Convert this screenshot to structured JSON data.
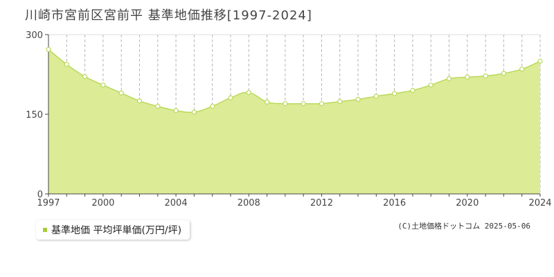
{
  "title": "川崎市宮前区宮前平 基準地価推移[1997-2024]",
  "legend_label": "基準地価 平均坪単価(万円/坪)",
  "credit": "(C)土地価格ドットコム 2025-05-06",
  "colors": {
    "area_fill": "#dceb95",
    "line": "#b9d95a",
    "marker_fill": "#ffffff",
    "marker_stroke": "#b9d95a",
    "legend_swatch": "#a8cc3a",
    "grid_vertical": "#b5b5b5",
    "grid_horizontal": "#999999",
    "axis": "#444444"
  },
  "chart_data": {
    "type": "area",
    "title": "川崎市宮前区宮前平 基準地価推移[1997-2024]",
    "xlabel": "",
    "ylabel": "",
    "x": [
      1997,
      1998,
      1999,
      2000,
      2001,
      2002,
      2003,
      2004,
      2005,
      2006,
      2007,
      2008,
      2009,
      2010,
      2011,
      2012,
      2013,
      2014,
      2015,
      2016,
      2017,
      2018,
      2019,
      2020,
      2021,
      2022,
      2023,
      2024
    ],
    "series": [
      {
        "name": "基準地価 平均坪単価(万円/坪)",
        "values": [
          272,
          244,
          221,
          205,
          190,
          175,
          165,
          157,
          154,
          165,
          181,
          191,
          173,
          170,
          170,
          170,
          174,
          178,
          184,
          189,
          195,
          205,
          217,
          220,
          222,
          227,
          235,
          250
        ]
      }
    ],
    "xlim": [
      1997,
      2024
    ],
    "ylim": [
      0,
      300
    ],
    "x_ticks": [
      1997,
      2000,
      2004,
      2008,
      2012,
      2016,
      2020,
      2024
    ],
    "y_ticks": [
      0,
      150,
      300
    ],
    "grid": "vertical dashed lines at each year, horizontal dashed line at 150",
    "legend": "bottom-left"
  }
}
